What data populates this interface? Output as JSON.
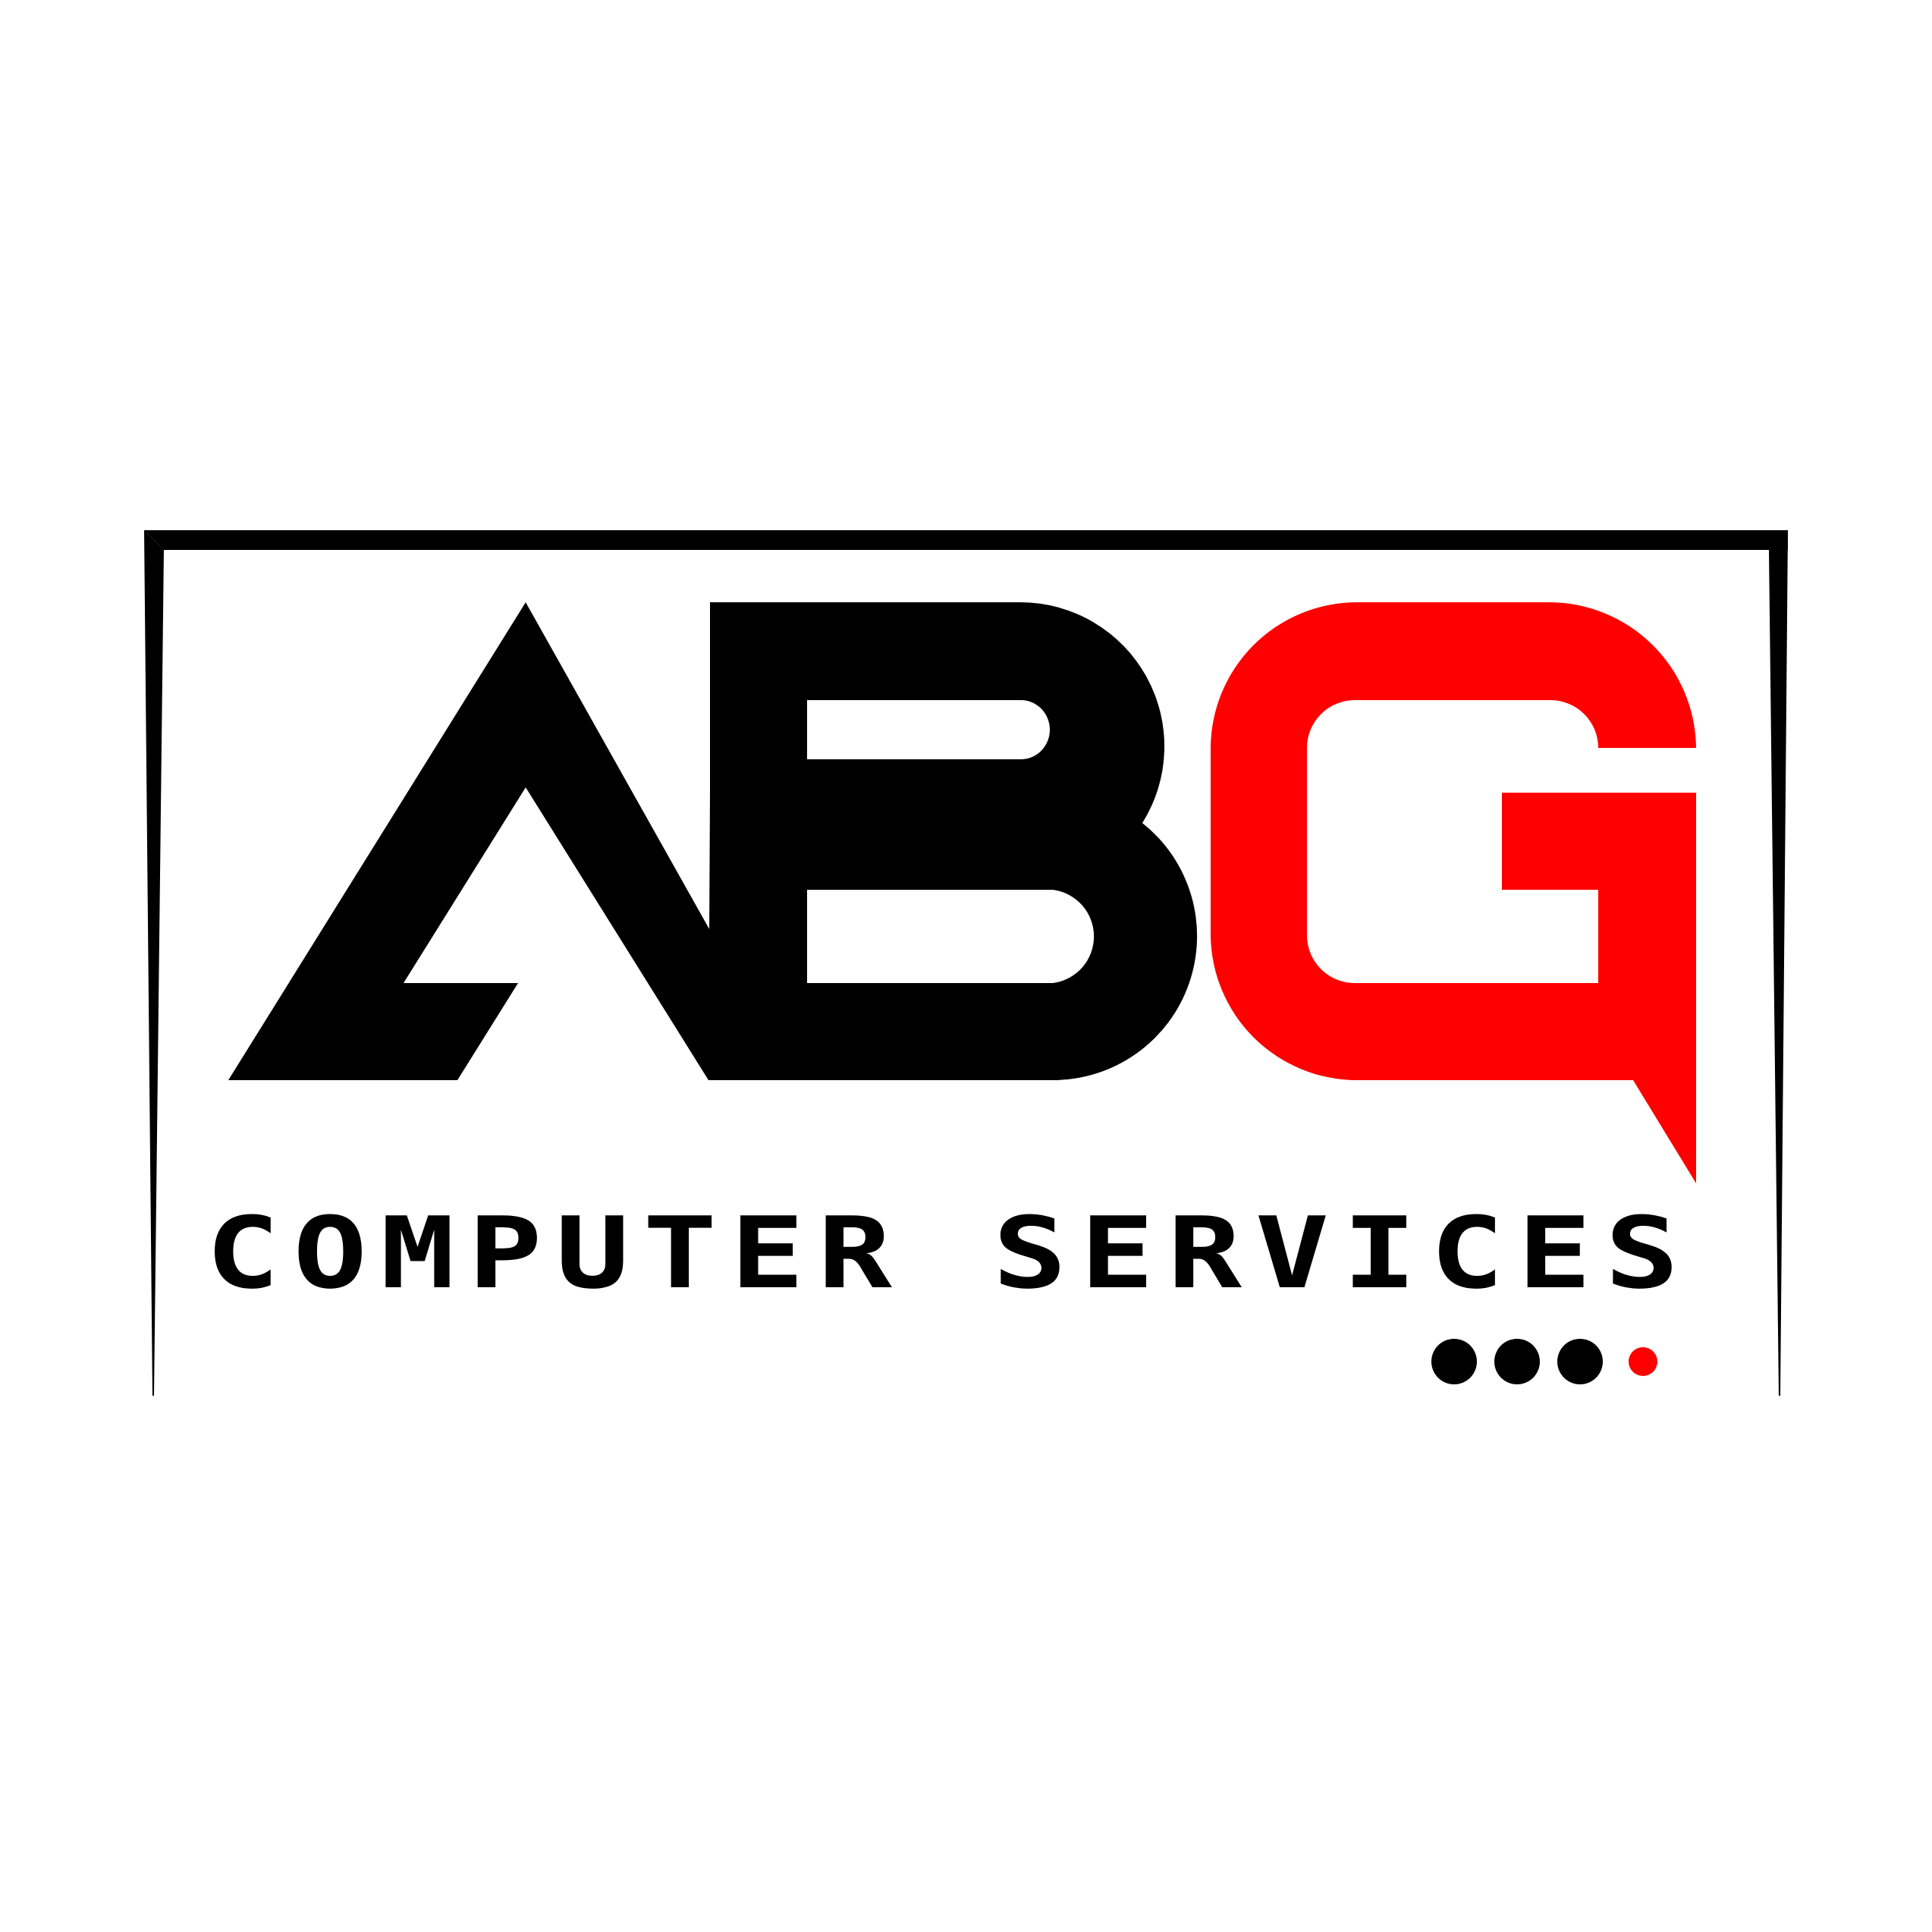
{
  "logo": {
    "monogram": "ABG",
    "tagline": "COMPUTER SERVICES",
    "colors": {
      "background": "#ffffff",
      "primary": "#000000",
      "accent": "#ff0000"
    },
    "icons": [
      "frame-outline-icon",
      "ellipsis-dots-icon"
    ]
  }
}
